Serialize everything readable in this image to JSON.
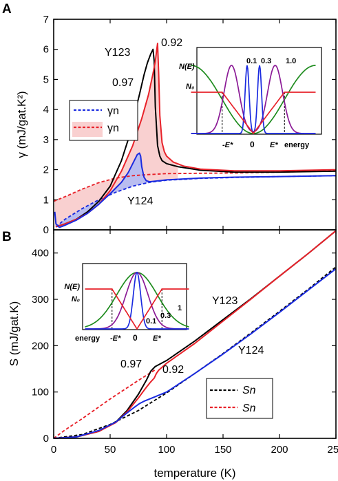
{
  "chart_data": [
    {
      "panel": "A",
      "type": "line",
      "ylabel": "γ  (mJ/gat.K²)",
      "xlim": [
        0,
        250
      ],
      "ylim": [
        0,
        7
      ],
      "xticks": [
        0,
        50,
        100,
        150,
        200,
        250
      ],
      "yticks": [
        0,
        1,
        2,
        3,
        4,
        5,
        6,
        7
      ],
      "legend": {
        "position": "left",
        "entries": [
          {
            "text": "γn",
            "color": "#1a2be0",
            "style": "dashed"
          },
          {
            "text": "γn",
            "color": "#e8222a",
            "style": "dashed"
          }
        ]
      },
      "annotations": [
        "0.92",
        "Y123",
        "0.97",
        "Y124"
      ],
      "series": [
        {
          "color": "#1a2be0",
          "style": "dashed",
          "x": [
            2,
            10,
            25,
            40,
            55,
            70,
            85,
            100,
            130,
            160,
            200,
            250
          ],
          "y": [
            0.1,
            0.35,
            0.7,
            1.0,
            1.25,
            1.45,
            1.58,
            1.65,
            1.71,
            1.74,
            1.77,
            1.8
          ]
        },
        {
          "color": "#e8222a",
          "style": "dashed",
          "x": [
            0,
            10,
            25,
            40,
            55,
            70,
            85,
            100,
            130,
            160,
            200,
            250
          ],
          "y": [
            0.95,
            1.1,
            1.35,
            1.57,
            1.72,
            1.8,
            1.84,
            1.87,
            1.88,
            1.89,
            1.92,
            1.96
          ]
        },
        {
          "color": "#000000",
          "style": "solid",
          "x": [
            2,
            10,
            20,
            30,
            40,
            50,
            60,
            66,
            72,
            76,
            80,
            83,
            86,
            88,
            89,
            90,
            92,
            94,
            96,
            100,
            110,
            130,
            160,
            200,
            250
          ],
          "y": [
            0.1,
            0.2,
            0.35,
            0.6,
            0.95,
            1.45,
            2.3,
            3.0,
            3.9,
            4.5,
            5.15,
            5.55,
            5.85,
            6.0,
            5.6,
            4.1,
            2.8,
            2.45,
            2.3,
            2.2,
            2.1,
            1.98,
            1.92,
            1.92,
            1.95
          ]
        },
        {
          "color": "#e8222a",
          "style": "solid",
          "x": [
            2,
            10,
            20,
            30,
            40,
            50,
            60,
            70,
            78,
            84,
            88,
            90,
            91,
            92,
            93,
            94,
            96,
            98,
            100,
            106,
            115,
            130,
            160,
            200,
            250
          ],
          "y": [
            0.1,
            0.2,
            0.35,
            0.55,
            0.85,
            1.3,
            1.95,
            2.8,
            3.7,
            4.5,
            5.2,
            5.6,
            5.9,
            6.2,
            5.2,
            3.8,
            2.9,
            2.6,
            2.45,
            2.25,
            2.12,
            2.02,
            1.96,
            1.96,
            2.0
          ]
        },
        {
          "color": "#1a2be0",
          "style": "solid",
          "x": [
            1,
            2,
            5,
            10,
            20,
            30,
            40,
            50,
            60,
            66,
            70,
            74,
            76,
            77,
            78,
            80,
            82,
            85,
            90,
            100,
            130,
            160,
            200,
            250
          ],
          "y": [
            0.6,
            0.2,
            0.08,
            0.15,
            0.32,
            0.55,
            0.85,
            1.2,
            1.58,
            1.9,
            2.2,
            2.5,
            2.55,
            2.45,
            2.1,
            1.75,
            1.63,
            1.6,
            1.62,
            1.66,
            1.72,
            1.75,
            1.77,
            1.8
          ]
        }
      ],
      "inset": {
        "ylabel": "N(E)",
        "n0_label": "N₀",
        "x_labels": [
          "-E*",
          "0",
          "E*",
          "energy"
        ],
        "curve_labels": [
          "0.1",
          "0.3",
          "1.0"
        ],
        "colors": {
          "flat": "#e8222a",
          "w01": "#1a2be0",
          "w03": "#8b1a96",
          "w10": "#1e8c1e"
        }
      }
    },
    {
      "panel": "B",
      "type": "line",
      "xlabel": "temperature  (K)",
      "ylabel": "S  (mJ/gat.K)",
      "xlim": [
        0,
        250
      ],
      "ylim": [
        0,
        450
      ],
      "xticks": [
        0,
        50,
        100,
        150,
        200,
        250
      ],
      "yticks": [
        0,
        100,
        200,
        300,
        400
      ],
      "legend": {
        "position": "bottom-right",
        "entries": [
          {
            "text": "Sn",
            "color": "#000000",
            "style": "dashed"
          },
          {
            "text": "Sn",
            "color": "#e8222a",
            "style": "dashed"
          }
        ]
      },
      "annotations": [
        "Y123",
        "Y124",
        "0.97",
        "0.92"
      ],
      "series": [
        {
          "color": "#000000",
          "style": "dashed",
          "x": [
            0,
            25,
            50,
            75,
            100,
            125,
            150,
            175,
            200,
            225,
            250
          ],
          "y": [
            0,
            8,
            30,
            60,
            98,
            140,
            183,
            228,
            274,
            321,
            370
          ]
        },
        {
          "color": "#e8222a",
          "style": "dashed",
          "x": [
            0,
            10,
            25,
            50,
            75,
            90
          ],
          "y": [
            0,
            18,
            42,
            85,
            125,
            148
          ]
        },
        {
          "color": "#000000",
          "style": "solid",
          "x": [
            0,
            20,
            40,
            55,
            65,
            75,
            82,
            86,
            88,
            90,
            100,
            125,
            150,
            175,
            200,
            225,
            250
          ],
          "y": [
            0,
            3,
            15,
            35,
            60,
            95,
            125,
            145,
            150,
            155,
            168,
            210,
            256,
            302,
            350,
            398,
            448
          ]
        },
        {
          "color": "#e8222a",
          "style": "solid",
          "x": [
            0,
            20,
            40,
            55,
            65,
            75,
            82,
            86,
            89,
            91,
            93,
            100,
            125,
            150,
            175,
            200,
            225,
            250
          ],
          "y": [
            0,
            3,
            15,
            34,
            57,
            87,
            110,
            122,
            130,
            140,
            147,
            162,
            205,
            253,
            301,
            350,
            398,
            448
          ]
        },
        {
          "color": "#1a2be0",
          "style": "solid",
          "x": [
            0,
            20,
            40,
            55,
            65,
            72,
            76,
            80,
            90,
            100,
            125,
            150,
            175,
            200,
            225,
            250
          ],
          "y": [
            0,
            3,
            17,
            35,
            55,
            68,
            75,
            80,
            90,
            100,
            140,
            182,
            226,
            272,
            319,
            366
          ]
        }
      ],
      "inset": {
        "ylabel": "N(E)",
        "n0_label": "N₀",
        "x_labels": [
          "energy",
          "-E*",
          "0",
          "E*"
        ],
        "curve_labels": [
          "0.1",
          "0.3",
          "1"
        ],
        "colors": {
          "flat": "#e8222a",
          "w01": "#1a2be0",
          "w03": "#8b1a96",
          "w10": "#1e8c1e"
        }
      }
    }
  ]
}
